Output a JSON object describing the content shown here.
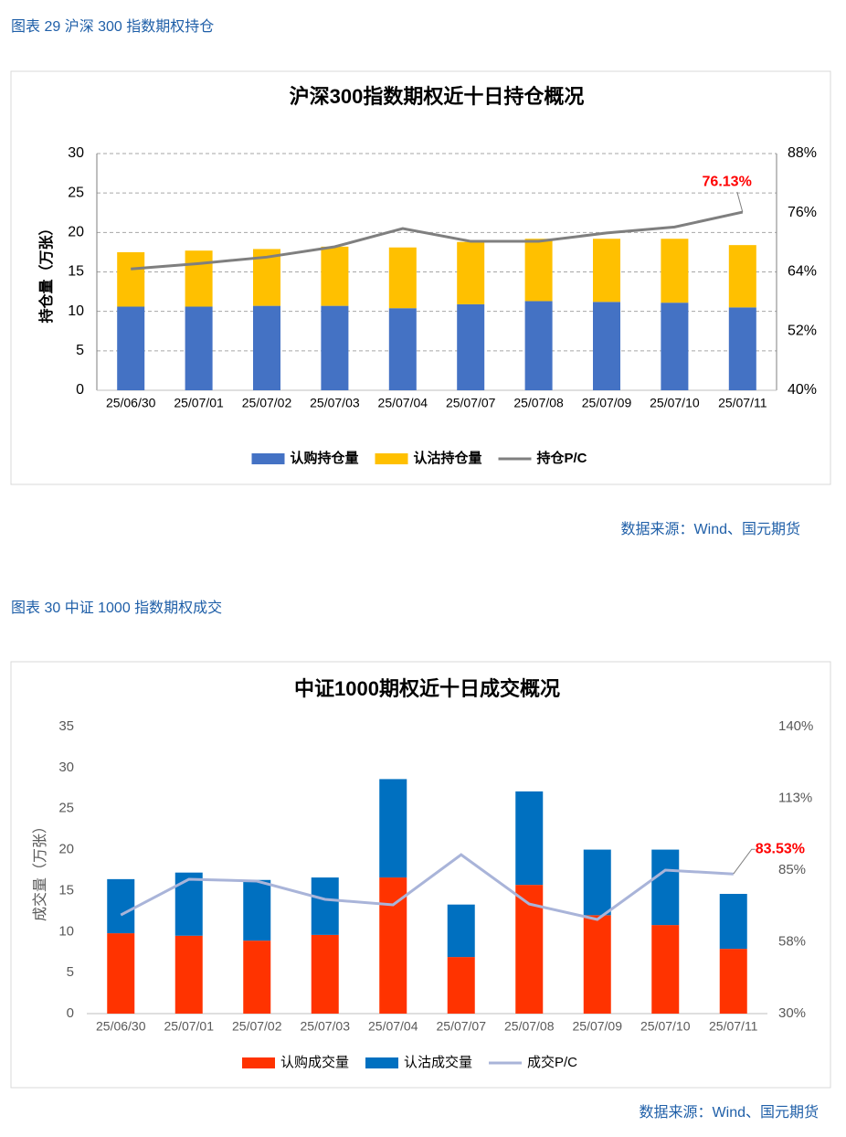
{
  "figures": [
    {
      "caption": "图表 29  沪深 300 指数期权持仓",
      "source": "数据来源：Wind、国元期货"
    },
    {
      "caption": "图表 30  中证 1000 指数期权成交",
      "source": "数据来源：Wind、国元期货"
    }
  ],
  "chart_data": [
    {
      "type": "bar",
      "title": "沪深300指数期权近十日持仓概况",
      "y_label": "持仓量（万张）",
      "categories": [
        "25/06/30",
        "25/07/01",
        "25/07/02",
        "25/07/03",
        "25/07/04",
        "25/07/07",
        "25/07/08",
        "25/07/09",
        "25/07/10",
        "25/07/11"
      ],
      "series": [
        {
          "name": "认购持仓量",
          "type": "bar",
          "color": "#4472c4",
          "values": [
            10.6,
            10.6,
            10.7,
            10.7,
            10.4,
            10.9,
            11.3,
            11.2,
            11.1,
            10.5
          ]
        },
        {
          "name": "认沽持仓量",
          "type": "bar",
          "color": "#ffc000",
          "values": [
            6.9,
            7.1,
            7.2,
            7.5,
            7.7,
            7.9,
            7.9,
            8.0,
            8.1,
            7.9
          ]
        },
        {
          "name": "持仓P/C",
          "type": "line",
          "axis": "y2",
          "color": "#7f7f7f",
          "values": [
            64.6,
            65.7,
            67.0,
            69.1,
            72.8,
            70.2,
            70.2,
            71.9,
            73.1,
            76.13
          ],
          "value_labels": [
            null,
            null,
            null,
            null,
            null,
            null,
            null,
            null,
            null,
            "76.13%"
          ]
        }
      ],
      "ylim": [
        0,
        30
      ],
      "yticks": [
        0,
        5,
        10,
        15,
        20,
        25,
        30
      ],
      "y2lim": [
        40,
        88
      ],
      "y2ticks": [
        {
          "value": 40,
          "label": "40%"
        },
        {
          "value": 52,
          "label": "52%"
        },
        {
          "value": 64,
          "label": "64%"
        },
        {
          "value": 76,
          "label": "76%"
        },
        {
          "value": 88,
          "label": "88%"
        }
      ],
      "grid": true
    },
    {
      "type": "bar",
      "title": "中证1000期权近十日成交概况",
      "y_label": "成交量（万张）",
      "categories": [
        "25/06/30",
        "25/07/01",
        "25/07/02",
        "25/07/03",
        "25/07/04",
        "25/07/07",
        "25/07/08",
        "25/07/09",
        "25/07/10",
        "25/07/11"
      ],
      "series": [
        {
          "name": "认购成交量",
          "type": "bar",
          "color": "#ff3300",
          "values": [
            9.8,
            9.5,
            8.9,
            9.6,
            16.6,
            6.9,
            15.7,
            12.0,
            10.8,
            7.9
          ]
        },
        {
          "name": "认沽成交量",
          "type": "bar",
          "color": "#0070c0",
          "values": [
            6.6,
            7.7,
            7.4,
            7.0,
            12.0,
            6.4,
            11.4,
            8.0,
            9.2,
            6.7
          ]
        },
        {
          "name": "成交P/C",
          "type": "line",
          "axis": "y2",
          "color": "#a9b4d9",
          "values": [
            67.8,
            81.5,
            80.8,
            73.8,
            71.7,
            90.9,
            72.0,
            66.1,
            85.0,
            83.53
          ],
          "value_labels": [
            null,
            null,
            null,
            null,
            null,
            null,
            null,
            null,
            null,
            "83.53%"
          ]
        }
      ],
      "ylim": [
        0,
        35
      ],
      "yticks": [
        0,
        5,
        10,
        15,
        20,
        25,
        30,
        35
      ],
      "y2lim": [
        30,
        140
      ],
      "y2ticks": [
        {
          "value": 30,
          "label": "30%"
        },
        {
          "value": 57.5,
          "label": "58%"
        },
        {
          "value": 85,
          "label": "85%"
        },
        {
          "value": 112.5,
          "label": "113%"
        },
        {
          "value": 140,
          "label": "140%"
        }
      ],
      "grid": false
    }
  ]
}
